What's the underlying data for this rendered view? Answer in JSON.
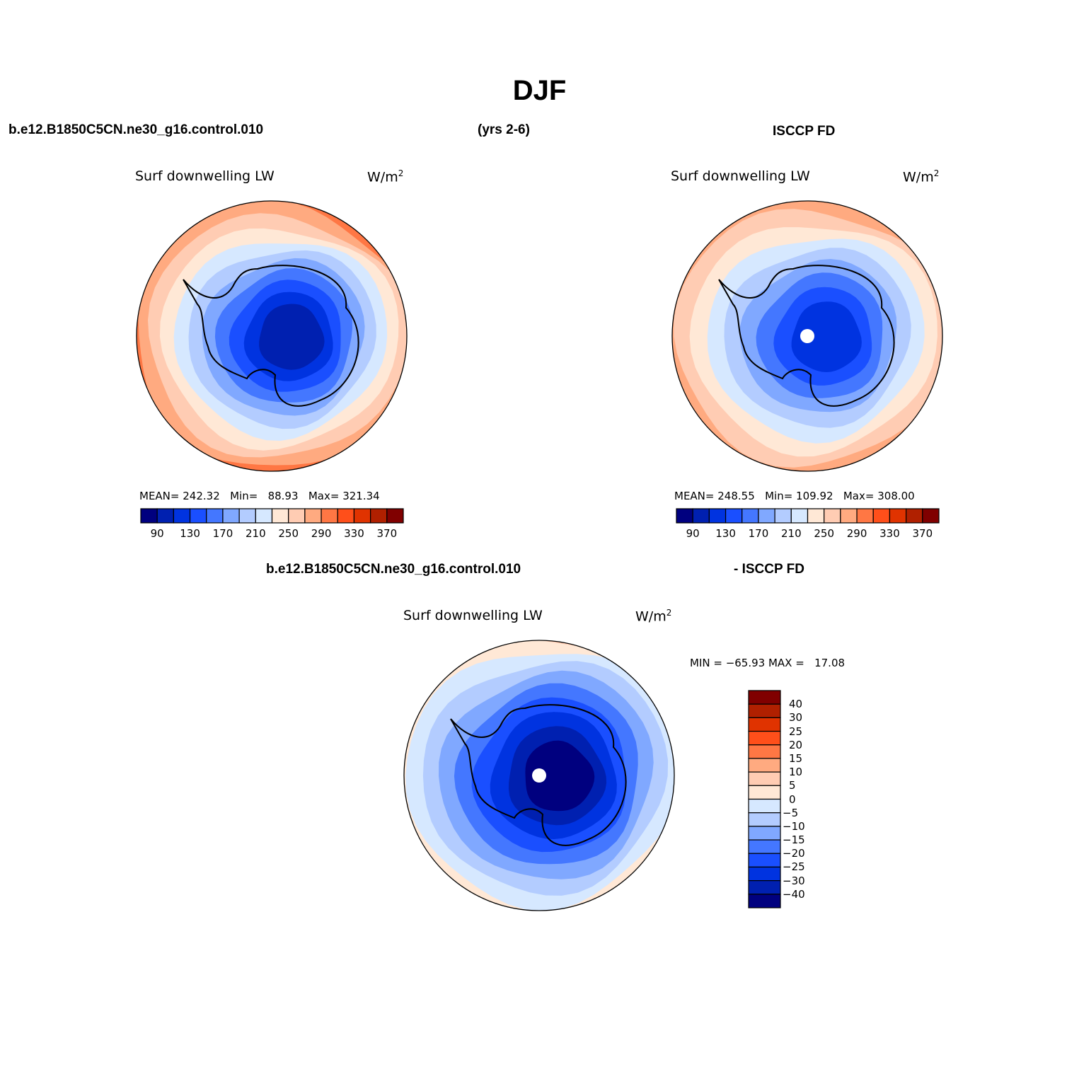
{
  "title": "DJF",
  "header_top": {
    "case": "b.e12.B1850C5CN.ne30_g16.control.010",
    "years": "(yrs 2-6)",
    "obs": "ISCCP FD"
  },
  "header_diff": {
    "case": "b.e12.B1850C5CN.ne30_g16.control.010",
    "obs": "- ISCCP FD"
  },
  "colors": [
    "#00007f",
    "#0020b0",
    "#0033e0",
    "#1a4fff",
    "#4477ff",
    "#80a8ff",
    "#b3ccff",
    "#d6e8ff",
    "#ffe8d6",
    "#ffccb3",
    "#ffaa80",
    "#ff7744",
    "#ff4f1a",
    "#e03300",
    "#b02000",
    "#800000"
  ],
  "maps": [
    {
      "variable": "Surf downwelling LW",
      "units": "W/m",
      "units_exp": "2",
      "stats": {
        "mean_label": "MEAN=",
        "mean": "242.32",
        "min_label": "Min=",
        "min": "88.93",
        "max_label": "Max=",
        "max": "321.34"
      },
      "bands": [
        12,
        11,
        10,
        9,
        8,
        7,
        6,
        5,
        4,
        3,
        2,
        1
      ]
    },
    {
      "variable": "Surf downwelling LW",
      "units": "W/m",
      "units_exp": "2",
      "stats": {
        "mean_label": "MEAN=",
        "mean": "248.55",
        "min_label": "Min=",
        "min": "109.92",
        "max_label": "Max=",
        "max": "308.00"
      },
      "bands": [
        11,
        10,
        9,
        8,
        7,
        6,
        5,
        4,
        3,
        2
      ]
    },
    {
      "variable": "Surf downwelling LW",
      "units": "W/m",
      "units_exp": "2",
      "stats": {
        "text": "MIN = −65.93 MAX =   17.08"
      },
      "bands": [
        9,
        8,
        7,
        6,
        5,
        4,
        3,
        2,
        1,
        0
      ]
    }
  ],
  "colorbar_abs": {
    "labels": [
      "90",
      "130",
      "170",
      "210",
      "250",
      "290",
      "330",
      "370"
    ]
  },
  "colorbar_diff": {
    "labels": [
      "40",
      "30",
      "25",
      "20",
      "15",
      "10",
      "5",
      "0",
      "−5",
      "−10",
      "−15",
      "−20",
      "−25",
      "−30",
      "−40"
    ]
  }
}
